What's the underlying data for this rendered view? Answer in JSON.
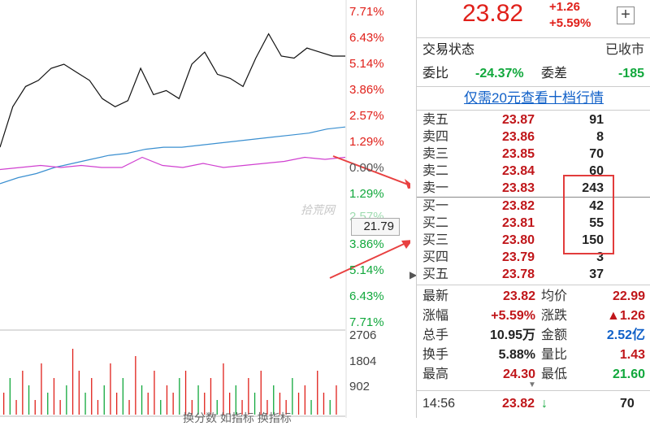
{
  "chart_data": {
    "type": "line",
    "title": "",
    "pct_axis_up": [
      "7.71%",
      "6.43%",
      "5.14%",
      "3.86%",
      "2.57%",
      "1.29%",
      "0.00%"
    ],
    "pct_axis_down": [
      "1.29%",
      "2.57%",
      "3.86%",
      "5.14%",
      "6.43%",
      "7.71%"
    ],
    "volume_axis": [
      "2706",
      "1804",
      "902"
    ],
    "current_price_tag": "21.79",
    "price_series": [
      1.0,
      3.0,
      4.0,
      4.3,
      4.9,
      5.1,
      4.7,
      4.3,
      3.4,
      3.0,
      3.3,
      4.9,
      3.6,
      3.8,
      3.4,
      5.1,
      5.7,
      4.6,
      4.4,
      4.0,
      5.4,
      6.6,
      5.5,
      5.4,
      5.9,
      5.7,
      5.5,
      5.5
    ],
    "avg_series": [
      -0.8,
      -0.5,
      -0.3,
      0.0,
      0.2,
      0.4,
      0.6,
      0.7,
      0.9,
      1.0,
      1.0,
      1.1,
      1.2,
      1.3,
      1.4,
      1.5,
      1.6,
      1.7,
      1.9,
      2.0
    ],
    "pink_series": [
      -0.1,
      0.0,
      0.1,
      0.0,
      0.1,
      0.0,
      0.0,
      0.5,
      0.1,
      0.0,
      0.2,
      0.0,
      0.1,
      0.2,
      0.3,
      0.5,
      0.4,
      0.5
    ],
    "volume_bars": [
      3,
      5,
      2,
      6,
      4,
      2,
      7,
      3,
      5,
      2,
      4,
      9,
      6,
      3,
      5,
      2,
      4,
      7,
      3,
      5,
      2,
      8,
      4,
      3,
      6,
      2,
      4,
      3,
      5,
      6,
      2,
      4,
      3,
      5,
      2,
      7,
      3,
      4,
      2,
      5,
      3,
      6,
      2,
      4,
      3,
      2,
      5,
      3,
      4,
      2,
      6,
      3,
      2,
      4
    ]
  },
  "watermark": "拾荒网",
  "bottom_tabs": "换分数  如指标  换指标",
  "header": {
    "price": "23.82",
    "change": "+1.26",
    "change_pct": "+5.59%",
    "plus": "+"
  },
  "trade_status": {
    "label": "交易状态",
    "value": "已收市"
  },
  "ratio": {
    "label1": "委比",
    "value1": "-24.37%",
    "label2": "委差",
    "value2": "-185"
  },
  "link_text": "仅需20元查看十档行情",
  "order_book": {
    "asks": [
      {
        "label": "卖五",
        "price": "23.87",
        "vol": "91"
      },
      {
        "label": "卖四",
        "price": "23.86",
        "vol": "8"
      },
      {
        "label": "卖三",
        "price": "23.85",
        "vol": "70"
      },
      {
        "label": "卖二",
        "price": "23.84",
        "vol": "60"
      },
      {
        "label": "卖一",
        "price": "23.83",
        "vol": "243"
      }
    ],
    "bids": [
      {
        "label": "买一",
        "price": "23.82",
        "vol": "42"
      },
      {
        "label": "买二",
        "price": "23.81",
        "vol": "55"
      },
      {
        "label": "买三",
        "price": "23.80",
        "vol": "150"
      },
      {
        "label": "买四",
        "price": "23.79",
        "vol": "3"
      },
      {
        "label": "买五",
        "price": "23.78",
        "vol": "37"
      }
    ]
  },
  "stats": [
    {
      "k1": "最新",
      "v1": "23.82",
      "k2": "均价",
      "v2": "22.99"
    },
    {
      "k1": "涨幅",
      "v1": "+5.59%",
      "k2": "涨跌",
      "v2": "▲1.26"
    },
    {
      "k1": "总手",
      "v1": "10.95万",
      "k2": "金额",
      "v2": "2.52亿"
    },
    {
      "k1": "换手",
      "v1": "5.88%",
      "k2": "量比",
      "v2": "1.43"
    },
    {
      "k1": "最高",
      "v1": "24.30",
      "k2": "最低",
      "v2": "21.60"
    }
  ],
  "footer": {
    "time": "14:56",
    "price": "23.82",
    "arrow": "↓",
    "vol": "70"
  },
  "colors": {
    "up": "#e0201a",
    "down": "#11a83c",
    "blue": "#1060c8",
    "avg": "#3a8fd0",
    "pink": "#d040d0"
  }
}
